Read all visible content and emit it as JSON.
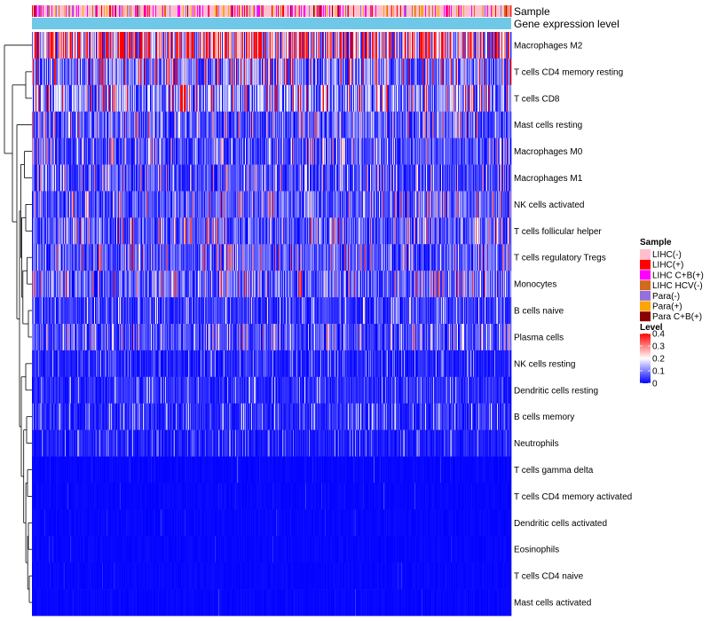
{
  "chart_data": {
    "type": "heatmap",
    "title": "",
    "annotation_labels": {
      "sample": "Sample",
      "gene_expression": "Gene expression level"
    },
    "rows": [
      {
        "name": "Macrophages M2",
        "mean": 0.28
      },
      {
        "name": "T cells CD4 memory resting",
        "mean": 0.11
      },
      {
        "name": "T cells CD8",
        "mean": 0.13
      },
      {
        "name": "Mast cells resting",
        "mean": 0.08
      },
      {
        "name": "Macrophages M0",
        "mean": 0.07
      },
      {
        "name": "Macrophages M1",
        "mean": 0.07
      },
      {
        "name": "NK cells activated",
        "mean": 0.08
      },
      {
        "name": "T cells follicular helper",
        "mean": 0.08
      },
      {
        "name": "T cells regulatory  Tregs",
        "mean": 0.08
      },
      {
        "name": "Monocytes",
        "mean": 0.09
      },
      {
        "name": "B cells naive",
        "mean": 0.05
      },
      {
        "name": "Plasma cells",
        "mean": 0.07
      },
      {
        "name": "NK cells resting",
        "mean": 0.03
      },
      {
        "name": "Dendritic cells resting",
        "mean": 0.04
      },
      {
        "name": "B cells memory",
        "mean": 0.04
      },
      {
        "name": "Neutrophils",
        "mean": 0.03
      },
      {
        "name": "T cells gamma delta",
        "mean": 0.015
      },
      {
        "name": "T cells CD4 memory activated",
        "mean": 0.012
      },
      {
        "name": "Dendritic cells activated",
        "mean": 0.01
      },
      {
        "name": "Eosinophils",
        "mean": 0.008
      },
      {
        "name": "T cells CD4 naive",
        "mean": 0.008
      },
      {
        "name": "Mast cells activated",
        "mean": 0.01
      }
    ],
    "columns_count": 540,
    "sample_legend": {
      "title": "Sample",
      "entries": [
        {
          "label": "LIHC(-)",
          "color": "#FFC0CB",
          "weight": 55
        },
        {
          "label": "LIHC(+)",
          "color": "#FF0000",
          "weight": 5
        },
        {
          "label": "LIHC C+B(+)",
          "color": "#FF00FF",
          "weight": 12
        },
        {
          "label": "LIHC HCV(-)",
          "color": "#D2691E",
          "weight": 4
        },
        {
          "label": "Para(-)",
          "color": "#9370DB",
          "weight": 4
        },
        {
          "label": "Para(+)",
          "color": "#FFA500",
          "weight": 8
        },
        {
          "label": "Para C+B(+)",
          "color": "#8B0000",
          "weight": 2
        }
      ]
    },
    "gene_expression_color": "#70C8E8",
    "level_legend": {
      "title": "Level",
      "ticks": [
        "0.4",
        "0.3",
        "0.2",
        "0.1",
        "0"
      ],
      "min": 0,
      "max": 0.4,
      "colors": [
        "#0000FF",
        "#FFFFFF",
        "#FF0000"
      ]
    }
  }
}
